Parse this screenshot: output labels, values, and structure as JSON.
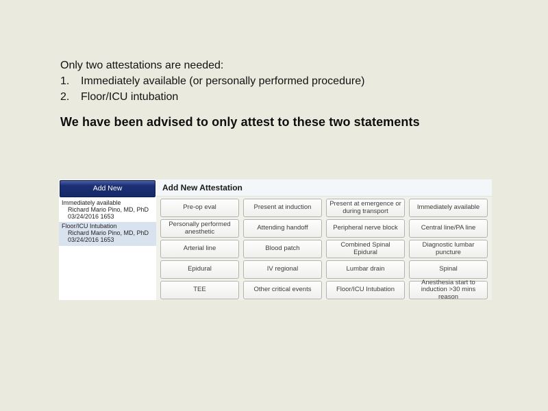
{
  "slide": {
    "intro": "Only two attestations are needed:",
    "list": [
      {
        "num": "1.",
        "text": "Immediately available (or personally performed procedure)"
      },
      {
        "num": "2.",
        "text": "Floor/ICU intubation"
      }
    ],
    "statement": "We have been advised to only attest to these two statements"
  },
  "app": {
    "sidebar": {
      "add_new_label": "Add New",
      "attestations": [
        {
          "title": "Immediately available",
          "provider": "Richard Mario Pino, MD, PhD",
          "timestamp": "03/24/2016 1653",
          "selected": false
        },
        {
          "title": "Floor/ICU Intubation",
          "provider": "Richard Mario Pino, MD, PhD",
          "timestamp": "03/24/2016 1653",
          "selected": true
        }
      ]
    },
    "panel": {
      "title": "Add New Attestation",
      "buttons": [
        [
          "Pre-op eval",
          "Present at induction",
          "Present at emergence or during transport",
          "Immediately available"
        ],
        [
          "Personally performed anesthetic",
          "Attending handoff",
          "Peripheral nerve block",
          "Central line/PA line"
        ],
        [
          "Arterial line",
          "Blood patch",
          "Combined Spinal Epidural",
          "Diagnostic lumbar puncture"
        ],
        [
          "Epidural",
          "IV regional",
          "Lumbar drain",
          "Spinal"
        ],
        [
          "TEE",
          "Other critical events",
          "Floor/ICU Intubation",
          "Anesthesia start to induction >30 mins reason"
        ]
      ]
    },
    "colors": {
      "slide_bg": "#EBEADE",
      "add_new_navy": "#1C2F74",
      "selected_item_bg": "#D9E3EF",
      "panel_bg": "#F1F1EB",
      "header_bg": "#F4F7F9",
      "button_border": "#B3B3AD"
    }
  }
}
